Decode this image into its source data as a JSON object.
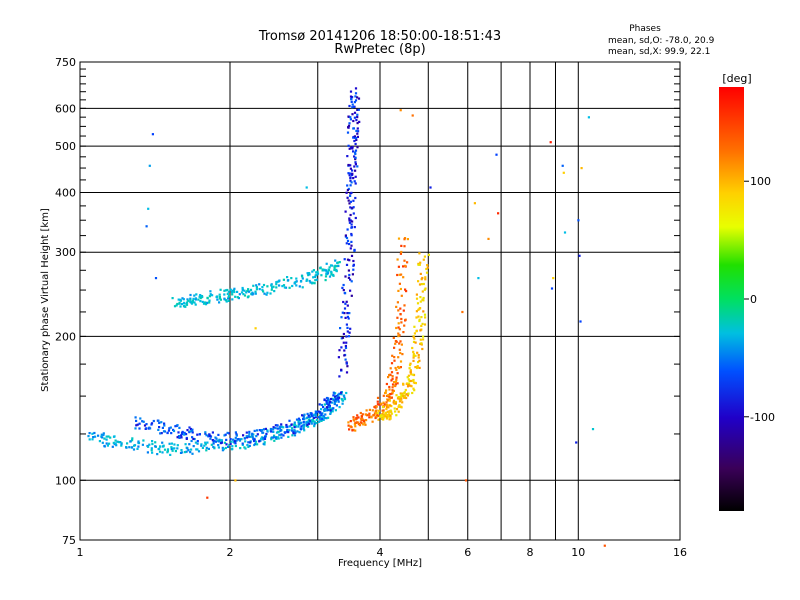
{
  "chart_data": {
    "type": "scatter",
    "title_line1": "Tromsø 20141206 18:50:00-18:51:43",
    "title_line2": "RwPretec (8p)",
    "xlabel": "Frequency [MHz]",
    "ylabel": "Stationary phase Virtual Height [km]",
    "x_scale": "log",
    "y_scale": "log",
    "xlim": [
      1,
      16
    ],
    "ylim": [
      75,
      750
    ],
    "x_ticks": [
      1,
      2,
      4,
      6,
      8,
      10,
      16
    ],
    "y_ticks": [
      75,
      100,
      200,
      300,
      400,
      500,
      600,
      750
    ],
    "x_gridlines": [
      1,
      2,
      3,
      4,
      5,
      6,
      7,
      8,
      9,
      10,
      16
    ],
    "y_gridlines": [
      100,
      200,
      300,
      400,
      500,
      600
    ],
    "grid": true,
    "stats": {
      "header": "Phases",
      "line_o": "mean, sd,O: -78.0, 20.9",
      "line_x": "mean, sd,X:  99.9, 22.1"
    },
    "colorbar": {
      "label": "[deg]",
      "range": [
        -180,
        180
      ],
      "ticks": [
        100,
        0,
        -100
      ],
      "tick_labels": [
        "100",
        "0",
        "-100"
      ]
    },
    "traces": [
      {
        "x": [
          1.55,
          1.7,
          1.9,
          2.1,
          2.4,
          2.8,
          3.1,
          3.3
        ],
        "y": [
          235,
          238,
          243,
          247,
          253,
          262,
          272,
          283
        ],
        "phase": -55
      },
      {
        "x": [
          1.05,
          1.2,
          1.4,
          1.6,
          1.9,
          2.2,
          2.5,
          2.8,
          3.0,
          3.2,
          3.35
        ],
        "y": [
          124,
          120,
          117,
          116,
          118,
          121,
          125,
          130,
          135,
          143,
          152
        ],
        "phase": -60
      },
      {
        "x": [
          1.3,
          1.5,
          1.7,
          2.0,
          2.3,
          2.6,
          2.9,
          3.1,
          3.3
        ],
        "y": [
          132,
          128,
          124,
          122,
          124,
          128,
          134,
          142,
          150
        ],
        "phase": -95
      },
      {
        "x": [
          3.35,
          3.42,
          3.47,
          3.5,
          3.52,
          3.54,
          3.56
        ],
        "y": [
          165,
          220,
          300,
          390,
          470,
          560,
          650
        ],
        "phase": -110
      },
      {
        "x": [
          3.5,
          3.7,
          3.95,
          4.15,
          4.3,
          4.4,
          4.45
        ],
        "y": [
          130,
          134,
          140,
          150,
          170,
          220,
          330
        ],
        "phase": 140
      },
      {
        "x": [
          4.0,
          4.2,
          4.4,
          4.6,
          4.75,
          4.85,
          4.9
        ],
        "y": [
          135,
          140,
          148,
          160,
          185,
          230,
          300
        ],
        "phase": 105
      }
    ],
    "scatter_points": [
      {
        "x": 1.4,
        "y": 530,
        "phase": -100
      },
      {
        "x": 1.38,
        "y": 455,
        "phase": -70
      },
      {
        "x": 1.37,
        "y": 370,
        "phase": -60
      },
      {
        "x": 1.36,
        "y": 340,
        "phase": -90
      },
      {
        "x": 1.42,
        "y": 265,
        "phase": -95
      },
      {
        "x": 1.8,
        "y": 92,
        "phase": 160
      },
      {
        "x": 2.05,
        "y": 100,
        "phase": 110
      },
      {
        "x": 2.25,
        "y": 208,
        "phase": 100
      },
      {
        "x": 2.85,
        "y": 410,
        "phase": -60
      },
      {
        "x": 4.4,
        "y": 595,
        "phase": 130
      },
      {
        "x": 4.65,
        "y": 580,
        "phase": 140
      },
      {
        "x": 5.05,
        "y": 410,
        "phase": -110
      },
      {
        "x": 5.85,
        "y": 225,
        "phase": 140
      },
      {
        "x": 5.95,
        "y": 100,
        "phase": 150
      },
      {
        "x": 6.2,
        "y": 380,
        "phase": 110
      },
      {
        "x": 6.3,
        "y": 265,
        "phase": -60
      },
      {
        "x": 6.6,
        "y": 320,
        "phase": 130
      },
      {
        "x": 6.85,
        "y": 480,
        "phase": -100
      },
      {
        "x": 6.9,
        "y": 362,
        "phase": 165
      },
      {
        "x": 8.8,
        "y": 510,
        "phase": 170
      },
      {
        "x": 8.9,
        "y": 265,
        "phase": 100
      },
      {
        "x": 8.85,
        "y": 252,
        "phase": -100
      },
      {
        "x": 9.3,
        "y": 455,
        "phase": -90
      },
      {
        "x": 9.35,
        "y": 440,
        "phase": 100
      },
      {
        "x": 9.4,
        "y": 330,
        "phase": -60
      },
      {
        "x": 9.9,
        "y": 120,
        "phase": -110
      },
      {
        "x": 10.0,
        "y": 350,
        "phase": -95
      },
      {
        "x": 10.05,
        "y": 295,
        "phase": -110
      },
      {
        "x": 10.1,
        "y": 215,
        "phase": -100
      },
      {
        "x": 10.15,
        "y": 450,
        "phase": 110
      },
      {
        "x": 10.5,
        "y": 575,
        "phase": -60
      },
      {
        "x": 10.7,
        "y": 128,
        "phase": -50
      },
      {
        "x": 11.3,
        "y": 73,
        "phase": 150
      }
    ]
  }
}
